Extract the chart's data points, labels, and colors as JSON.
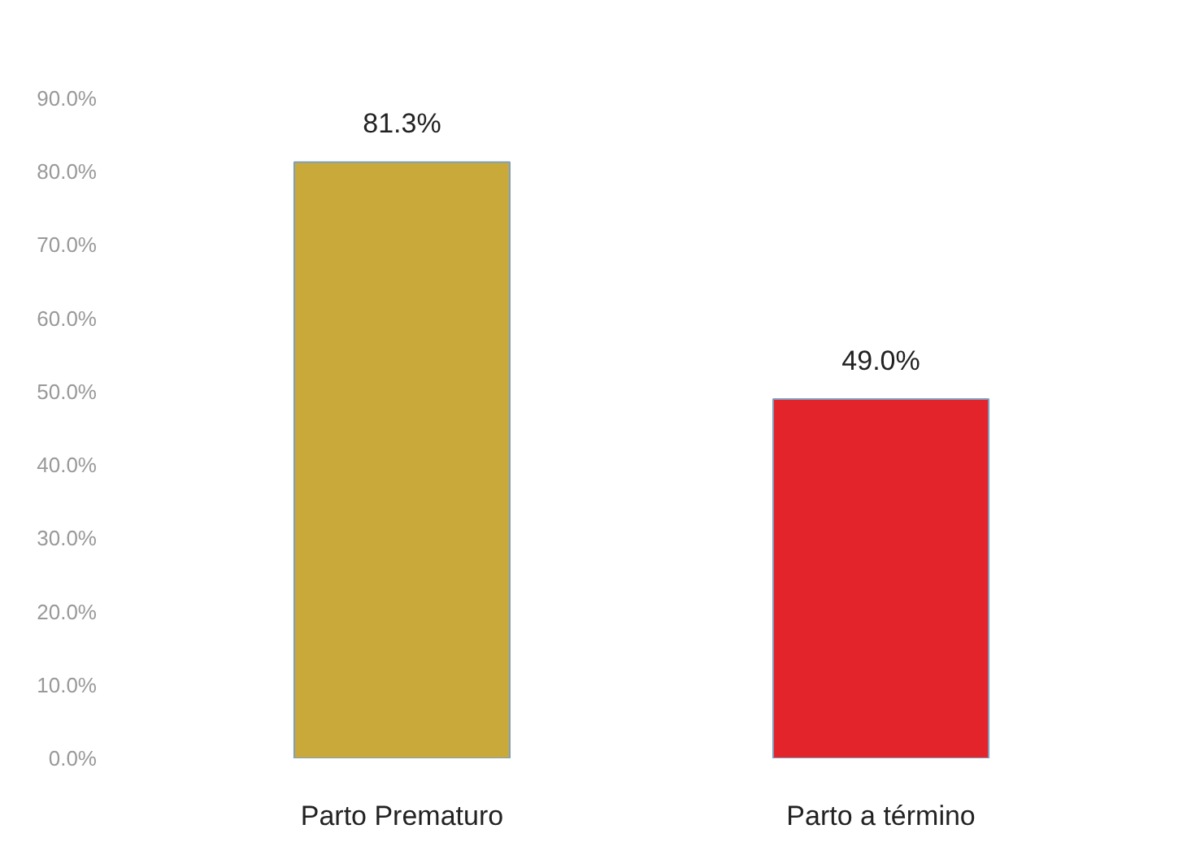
{
  "chart_data": {
    "type": "bar",
    "categories": [
      "Parto Prematuro",
      "Parto a término"
    ],
    "values": [
      81.3,
      49.0
    ],
    "colors": [
      "#c9a93a",
      "#e3242b"
    ],
    "value_labels": [
      "81.3%",
      "49.0%"
    ],
    "ylim": [
      0,
      90
    ],
    "yticks": [
      {
        "value": 0,
        "label": "0.0%"
      },
      {
        "value": 10,
        "label": "10.0%"
      },
      {
        "value": 20,
        "label": "20.0%"
      },
      {
        "value": 30,
        "label": "30.0%"
      },
      {
        "value": 40,
        "label": "40.0%"
      },
      {
        "value": 50,
        "label": "50.0%"
      },
      {
        "value": 60,
        "label": "60.0%"
      },
      {
        "value": 70,
        "label": "70.0%"
      },
      {
        "value": 80,
        "label": "80.0%"
      },
      {
        "value": 90,
        "label": "90.0%"
      }
    ],
    "grid": false
  }
}
